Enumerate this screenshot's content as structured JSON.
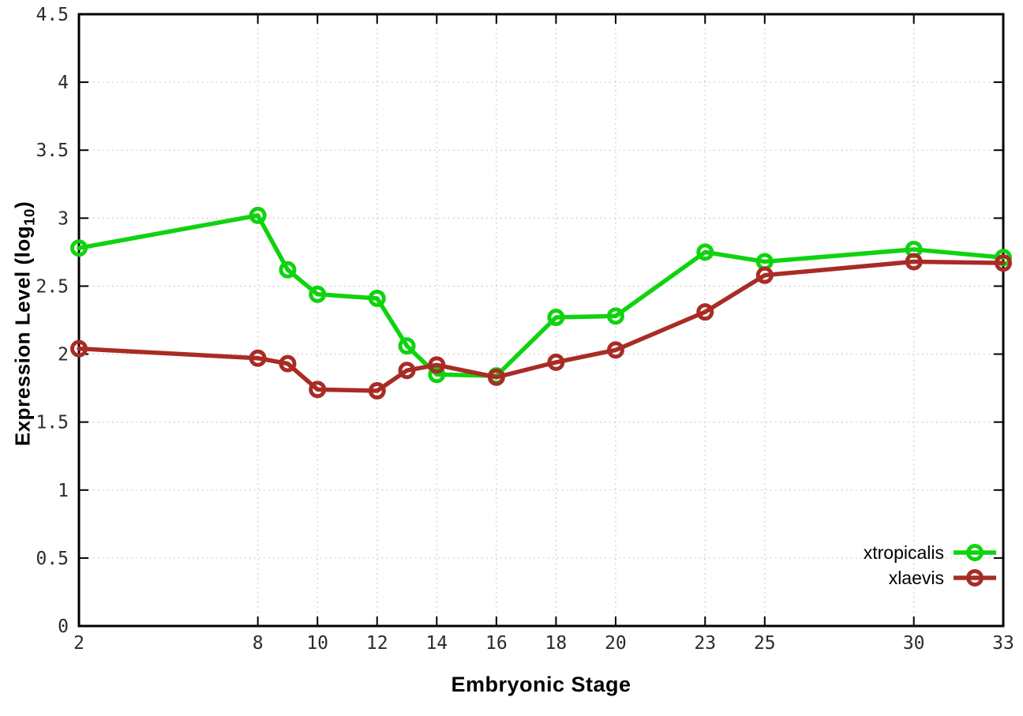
{
  "figure": {
    "title": "",
    "background": "#ffffff",
    "xlabel": "Embryonic Stage",
    "ylabel_prefix": "Expression Level (log",
    "ylabel_subscript": "10",
    "ylabel_suffix": ")"
  },
  "chart_data": {
    "type": "line",
    "title": "",
    "xlabel": "Embryonic Stage",
    "ylabel": "Expression Level (log10)",
    "xlim": [
      2,
      33
    ],
    "ylim": [
      0,
      4.5
    ],
    "grid": true,
    "legend_position": "inside bottom-right",
    "x_tick_labels": [
      "2",
      "8",
      "10",
      "12",
      "14",
      "16",
      "18",
      "20",
      "23",
      "25",
      "30",
      "33"
    ],
    "y_tick_labels": [
      "0",
      "0.5",
      "1",
      "1.5",
      "2",
      "2.5",
      "3",
      "3.5",
      "4",
      "4.5"
    ],
    "x": [
      2,
      8,
      9,
      10,
      12,
      13,
      14,
      16,
      18,
      20,
      23,
      25,
      30,
      33
    ],
    "series": [
      {
        "name": "xtropicalis",
        "color": "#0fd30f",
        "marker": "open-circle",
        "values": [
          2.78,
          3.02,
          2.62,
          2.44,
          2.41,
          2.06,
          1.85,
          1.84,
          2.27,
          2.28,
          2.75,
          2.68,
          2.77,
          2.71
        ]
      },
      {
        "name": "xlaevis",
        "color": "#a82c25",
        "marker": "open-circle",
        "values": [
          2.04,
          1.97,
          1.93,
          1.74,
          1.73,
          1.88,
          1.92,
          1.83,
          1.94,
          2.03,
          2.31,
          2.58,
          2.68,
          2.67
        ]
      }
    ],
    "axis_color": "#000000",
    "grid_color": "#c6c6c6",
    "tick_label_color": "#2b2b2b"
  }
}
